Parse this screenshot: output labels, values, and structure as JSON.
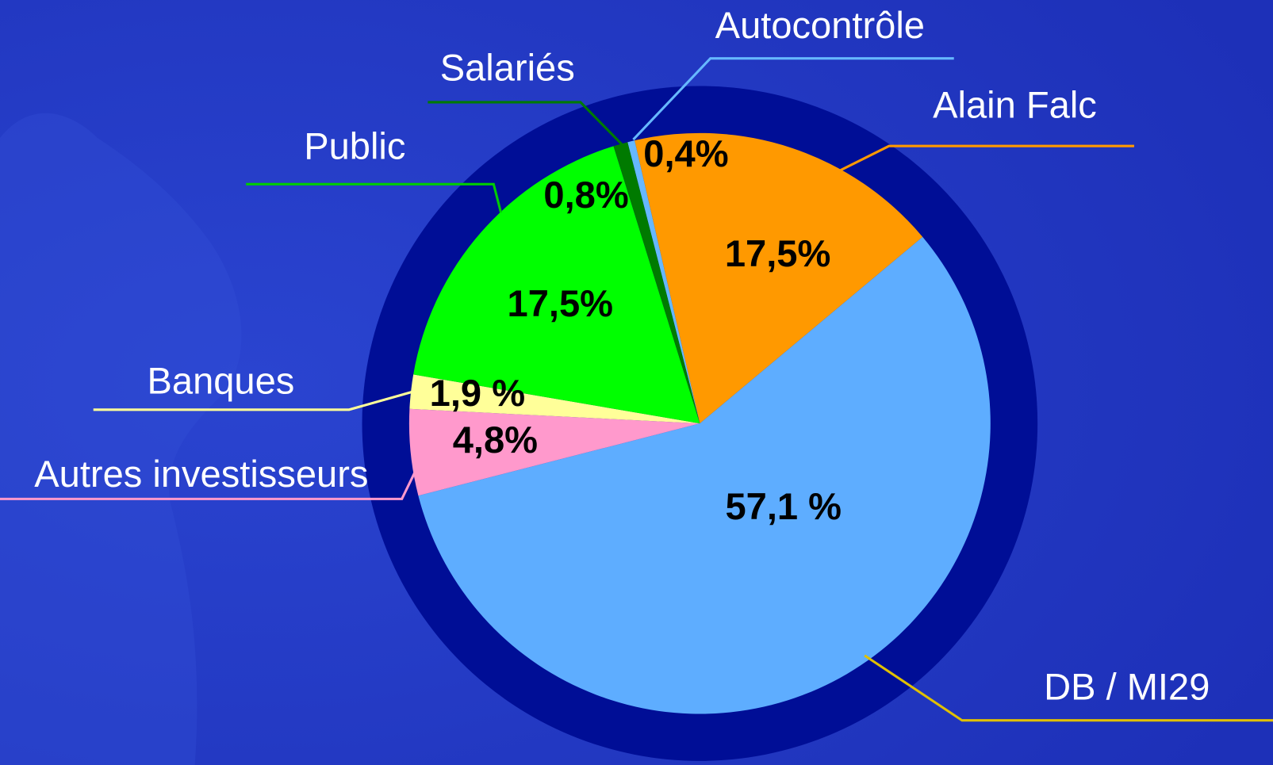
{
  "chart_data": {
    "type": "pie",
    "categories": [
      "Autocontrôle",
      "Alain Falc",
      "DB / MI29",
      "Autres investisseurs",
      "Banques",
      "Public",
      "Salariés"
    ],
    "values": [
      0.4,
      17.5,
      57.1,
      4.8,
      1.9,
      17.5,
      0.8
    ],
    "value_labels": [
      "0,4%",
      "17,5%",
      "57,1 %",
      "4,8%",
      "1,9 %",
      "17,5%",
      "0,8%"
    ],
    "colors": [
      "#66b8ff",
      "#ff9900",
      "#5eadff",
      "#ff99cc",
      "#ffff99",
      "#00ff00",
      "#007a00"
    ]
  }
}
